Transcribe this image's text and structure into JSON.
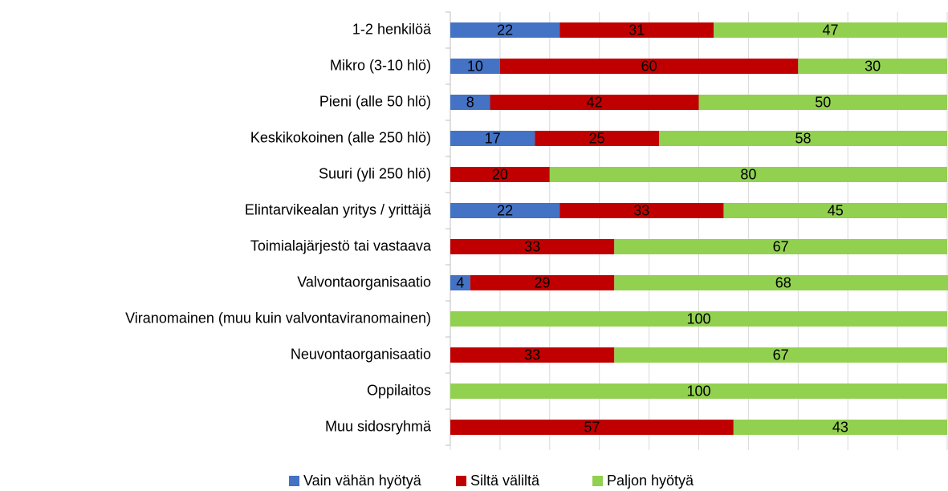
{
  "chart_data": {
    "type": "stacked_barh",
    "categories": [
      "1-2 henkilöä",
      "Mikro (3-10 hlö)",
      "Pieni (alle 50 hlö)",
      "Keskikokoinen (alle 250 hlö)",
      "Suuri (yli 250 hlö)",
      "Elintarvikealan yritys / yrittäjä",
      "Toimialajärjestö tai vastaava",
      "Valvontaorganisaatio",
      "Viranomainen (muu kuin valvontaviranomainen)",
      "Neuvontaorganisaatio",
      "Oppilaitos",
      "Muu sidosryhmä"
    ],
    "series": [
      {
        "name": "Vain vähän hyötyä",
        "color": "#4472c4",
        "values": [
          22,
          10,
          8,
          17,
          0,
          22,
          0,
          4,
          0,
          0,
          0,
          0
        ]
      },
      {
        "name": "Siltä väliltä",
        "color": "#c00000",
        "values": [
          31,
          60,
          42,
          25,
          20,
          33,
          33,
          29,
          0,
          33,
          0,
          57
        ]
      },
      {
        "name": "Paljon hyötyä",
        "color": "#92d050",
        "values": [
          47,
          30,
          50,
          58,
          80,
          45,
          67,
          68,
          100,
          67,
          100,
          43
        ]
      }
    ],
    "xlim": [
      0,
      100
    ],
    "xticks": [
      0,
      10,
      20,
      30,
      40,
      50,
      60,
      70,
      80,
      90,
      100
    ],
    "grid": true,
    "legend": "bottom"
  }
}
